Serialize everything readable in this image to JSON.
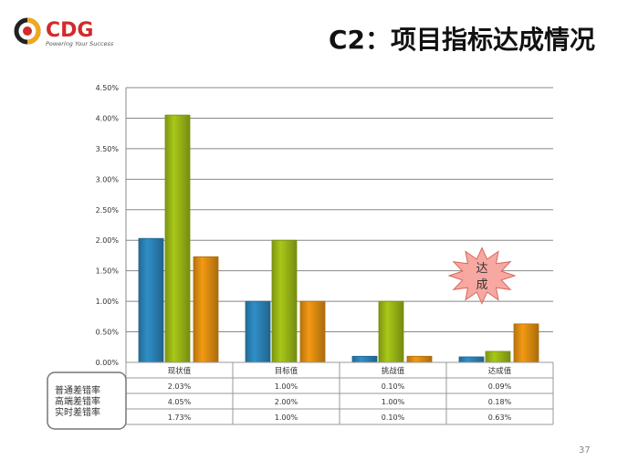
{
  "header": {
    "title": "C2：项目指标达成情况",
    "logo_text": "CDG",
    "logo_tagline": "Powering Your Success"
  },
  "page_number": "37",
  "colors": {
    "blue": "#2f8fc8",
    "green": "#a8c818",
    "orange": "#f39a12",
    "accent_red": "#d42a2a"
  },
  "callout": {
    "line1": "达",
    "line2": "成"
  },
  "chart_data": {
    "type": "bar",
    "categories": [
      "现状值",
      "目标值",
      "挑战值",
      "达成值"
    ],
    "series": [
      {
        "name": "普通差错率",
        "values": [
          2.03,
          1.0,
          0.1,
          0.09
        ],
        "labels": [
          "2.03%",
          "1.00%",
          "0.10%",
          "0.09%"
        ]
      },
      {
        "name": "高端差错率",
        "values": [
          4.05,
          2.0,
          1.0,
          0.18
        ],
        "labels": [
          "4.05%",
          "2.00%",
          "1.00%",
          "0.18%"
        ]
      },
      {
        "name": "实时差错率",
        "values": [
          1.73,
          1.0,
          0.1,
          0.63
        ],
        "labels": [
          "1.73%",
          "1.00%",
          "0.10%",
          "0.63%"
        ]
      }
    ],
    "ylim": [
      0,
      4.5
    ],
    "yticks": [
      "0.00%",
      "0.50%",
      "1.00%",
      "1.50%",
      "2.00%",
      "2.50%",
      "3.00%",
      "3.50%",
      "4.00%",
      "4.50%"
    ],
    "grid": true,
    "data_table": true
  }
}
